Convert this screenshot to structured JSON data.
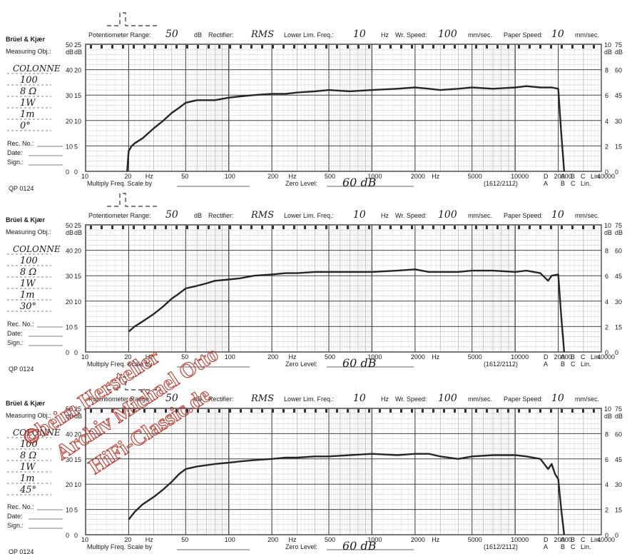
{
  "shared": {
    "brand": "Brüel & Kjær",
    "measuring_obj_label": "Measuring Obj.:",
    "rec_label": "Rec. No.:",
    "date_label": "Date:",
    "sign_label": "Sign.:",
    "form_code": "QP 0124",
    "potentiometer_label": "Potentiometer Range:",
    "db_unit": "dB",
    "rectifier_label": "Rectifier:",
    "lower_lim_label": "Lower Lim. Freq.:",
    "hz_unit": "Hz",
    "wr_speed_label": "Wr. Speed:",
    "mm_sec_unit": "mm/sec.",
    "paper_speed_label": "Paper Speed:",
    "multiply_label": "Multiply Freq. Scale by",
    "zero_level_label": "Zero Level:",
    "ratio_code": "(1612/2112)",
    "weight_top": [
      "D",
      "A",
      "B",
      "C",
      "Lin."
    ],
    "weight_bottom": [
      "A",
      "B",
      "C",
      "Lin."
    ],
    "left_scale_db": "dB",
    "left_ticks_a": [
      "50",
      "40",
      "30",
      "20",
      "10",
      "0"
    ],
    "left_ticks_b": [
      "25",
      "20",
      "15",
      "10",
      "5",
      "0"
    ],
    "right_ticks_a": [
      "10",
      "8",
      "6",
      "4",
      "2",
      "0"
    ],
    "right_ticks_b": [
      "75",
      "60",
      "45",
      "30",
      "15",
      "0"
    ],
    "x_ticks": [
      "10",
      "20",
      "Hz",
      "50",
      "100",
      "200",
      "Hz",
      "500",
      "1000",
      "2000",
      "Hz",
      "5000",
      "10000",
      "20000",
      "40000"
    ]
  },
  "watermark": [
    "©beim Hersteller",
    "Archiv Michael Otto",
    "HiFi-Classic.de"
  ],
  "colors": {
    "trace": "#262626",
    "grid": "#8a8a8a",
    "paper": "#ffffff",
    "watermark": "#c0392b"
  },
  "charts": [
    {
      "handwritten": [
        "COLONNE",
        "100",
        "8 Ω",
        "1W",
        "1m",
        "0°"
      ],
      "potentiometer_value": "50",
      "rectifier_value": "RMS",
      "lower_lim_value": "10",
      "wr_speed_value": "100",
      "paper_speed_value": "10",
      "zero_level_value": "60 dB"
    },
    {
      "handwritten": [
        "COLONNE",
        "100",
        "8 Ω",
        "1W",
        "1m",
        "30°"
      ],
      "potentiometer_value": "50",
      "rectifier_value": "RMS",
      "lower_lim_value": "10",
      "wr_speed_value": "100",
      "paper_speed_value": "10",
      "zero_level_value": "60 dB"
    },
    {
      "handwritten": [
        "COLONNE",
        "100",
        "8 Ω",
        "1W",
        "1m",
        "45°"
      ],
      "potentiometer_value": "50",
      "rectifier_value": "RMS",
      "lower_lim_value": "10",
      "wr_speed_value": "100",
      "paper_speed_value": "10",
      "zero_level_value": "60 dB"
    }
  ],
  "chart_data": [
    {
      "type": "line",
      "x_scale": "log",
      "xlim": [
        10,
        40000
      ],
      "ylim": [
        0,
        50
      ],
      "series": [
        {
          "x": [
            19.5,
            20,
            21,
            22,
            25,
            30,
            35,
            40,
            45,
            50,
            60,
            70,
            80,
            100,
            120,
            150,
            200,
            250,
            300,
            400,
            500,
            700,
            1000,
            1500,
            2000,
            2500,
            3000,
            4000,
            5000,
            7000,
            10000,
            12000,
            15000,
            18000,
            20000,
            21000,
            22000
          ],
          "y": [
            0,
            8,
            10,
            11,
            13,
            17,
            20,
            23,
            25,
            27,
            28,
            28,
            28,
            29,
            29.5,
            30,
            30.5,
            30.5,
            31,
            31.5,
            32,
            31.5,
            32,
            32.5,
            33,
            32.5,
            32,
            32.5,
            33,
            32.5,
            33,
            33.5,
            33,
            33,
            32.5,
            15,
            0
          ]
        }
      ]
    },
    {
      "type": "line",
      "x_scale": "log",
      "xlim": [
        10,
        40000
      ],
      "ylim": [
        0,
        50
      ],
      "series": [
        {
          "x": [
            20,
            22,
            25,
            30,
            35,
            40,
            45,
            50,
            60,
            70,
            80,
            100,
            120,
            150,
            200,
            250,
            300,
            400,
            500,
            700,
            1000,
            1500,
            2000,
            2500,
            3000,
            4000,
            5000,
            7000,
            10000,
            12000,
            15000,
            17000,
            18000,
            20000,
            21000,
            22000
          ],
          "y": [
            8,
            10,
            12,
            15,
            18,
            21,
            23,
            25,
            26,
            27,
            28,
            28.5,
            29,
            30,
            30.5,
            31,
            31,
            31.5,
            31.5,
            31.5,
            31.5,
            32,
            32.5,
            31.5,
            31.5,
            31.5,
            32,
            32,
            31.5,
            32,
            31,
            28,
            30,
            30.5,
            14,
            0
          ]
        }
      ]
    },
    {
      "type": "line",
      "x_scale": "log",
      "xlim": [
        10,
        40000
      ],
      "ylim": [
        0,
        50
      ],
      "series": [
        {
          "x": [
            20,
            22,
            25,
            30,
            35,
            40,
            45,
            50,
            60,
            70,
            80,
            100,
            120,
            150,
            200,
            250,
            300,
            400,
            500,
            700,
            1000,
            1500,
            2000,
            2500,
            3000,
            4000,
            5000,
            7000,
            10000,
            12000,
            15000,
            17000,
            18000,
            19000,
            20000,
            21000,
            22000
          ],
          "y": [
            6,
            9,
            12,
            15,
            18,
            21,
            24,
            26,
            27,
            27.5,
            28,
            28.5,
            29,
            29.5,
            30,
            30.5,
            30.5,
            31,
            31,
            31.5,
            32,
            31.5,
            32,
            32,
            31,
            30,
            31,
            31.5,
            31.5,
            31,
            30,
            26,
            28,
            24,
            22,
            10,
            0
          ]
        }
      ]
    }
  ]
}
